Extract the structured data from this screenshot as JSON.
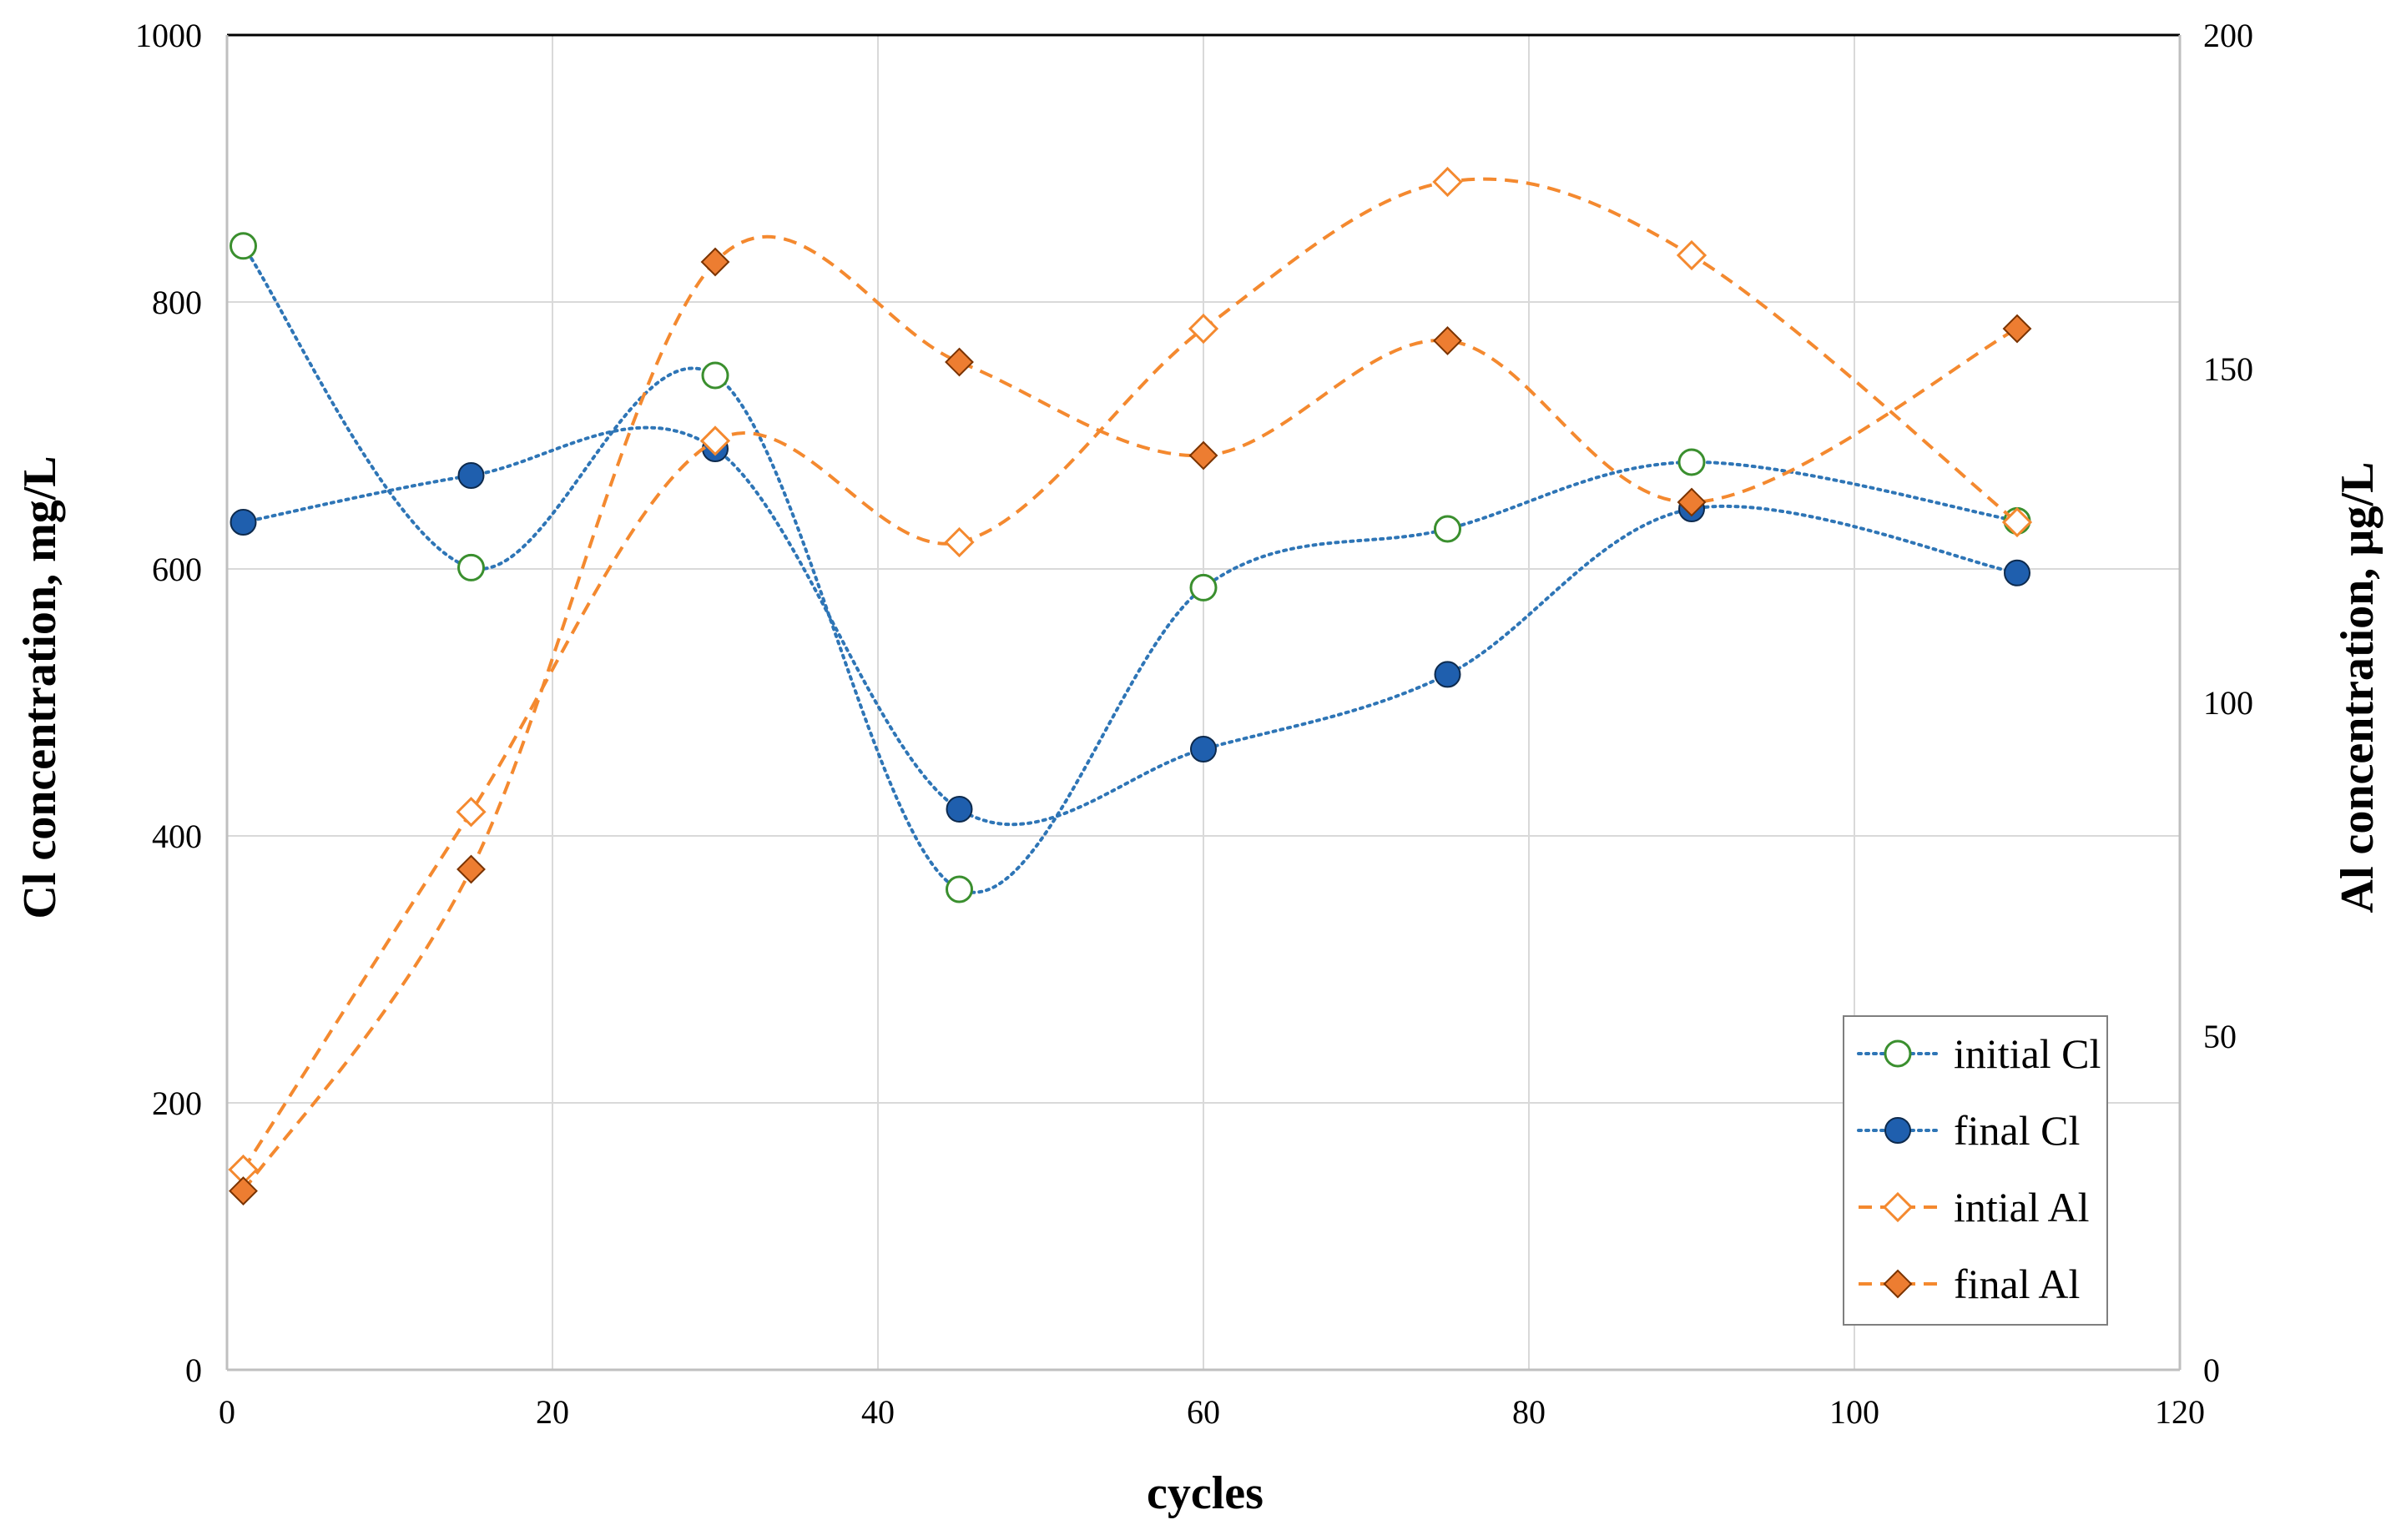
{
  "chart_data": {
    "type": "line",
    "title": "",
    "xlabel": "cycles",
    "ylabel_left": "Cl concentration, mg/L",
    "ylabel_right": "Al concentration, µg/L",
    "xlim": [
      0,
      120
    ],
    "ylim_left": [
      0,
      1000
    ],
    "ylim_right": [
      0,
      200
    ],
    "x_ticks": [
      0,
      20,
      40,
      60,
      80,
      100,
      120
    ],
    "y_left_ticks": [
      0,
      200,
      400,
      600,
      800,
      1000
    ],
    "y_right_ticks": [
      0,
      50,
      100,
      150,
      200
    ],
    "grid": true,
    "legend_position": "bottom-right",
    "x": [
      1,
      15,
      30,
      45,
      60,
      75,
      90,
      110
    ],
    "series": [
      {
        "name": "initial Cl",
        "axis": "left",
        "marker": "circle-open",
        "line": "dotted",
        "line_color": "#2E75B6",
        "marker_color": "#3A8F2E",
        "values": [
          842,
          601,
          745,
          360,
          586,
          630,
          680,
          636
        ]
      },
      {
        "name": "final Cl",
        "axis": "left",
        "marker": "circle-filled",
        "line": "dotted",
        "line_color": "#2E75B6",
        "marker_color": "#1F5FAE",
        "values": [
          635,
          670,
          690,
          420,
          465,
          521,
          645,
          597
        ]
      },
      {
        "name": "intial Al",
        "axis": "right",
        "marker": "diamond-open",
        "line": "dashed",
        "line_color": "#F4892F",
        "marker_color": "#F4892F",
        "values": [
          30,
          83.6,
          139.2,
          124,
          156,
          178,
          167,
          127
        ]
      },
      {
        "name": "final Al",
        "axis": "right",
        "marker": "diamond-filled",
        "line": "dashed",
        "line_color": "#F4892F",
        "marker_color": "#ED7D31",
        "values": [
          26.8,
          75,
          166,
          151,
          137,
          154.2,
          130,
          156
        ]
      }
    ]
  }
}
